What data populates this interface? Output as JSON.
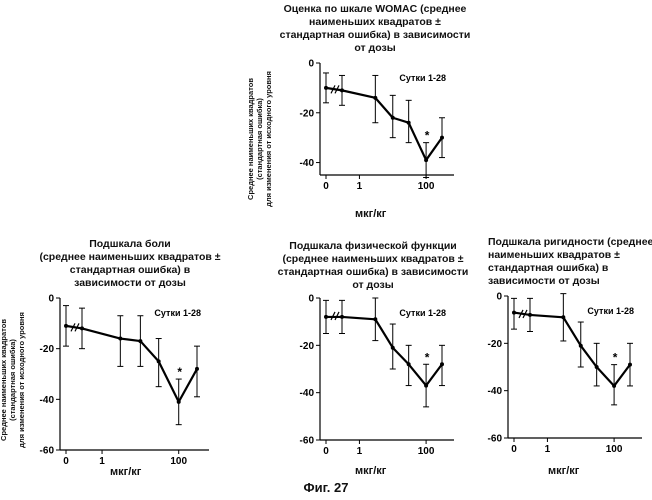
{
  "figure_label": "Фиг. 27",
  "chart_data": [
    {
      "type": "line",
      "title": "Оценка по шкале WOMAC (среднее\nнаименьших квадратов ±\nстандартная ошибка) в зависимости\nот дозы",
      "ylabel": "Среднее наименьших квадратов\n(стандартная ошибка)\nдля изменения от исходного уровня",
      "xlabel": "мкг/кг",
      "annotation": "Сутки 1-28",
      "x_scale": "log with 0 at break",
      "xticks": [
        "0",
        "1",
        "100"
      ],
      "yticks": [
        0,
        -20,
        -40
      ],
      "ylim": [
        -45,
        0
      ],
      "x": [
        0,
        0.3,
        3,
        10,
        30,
        100,
        300
      ],
      "values": [
        -10,
        -11,
        -14,
        -22,
        -24,
        -39,
        -30
      ],
      "err_upper": [
        -4,
        -5,
        -5,
        -13,
        -15,
        -32,
        -22
      ],
      "err_lower": [
        -16,
        -17,
        -24,
        -30,
        -32,
        -46,
        -38
      ],
      "significant": [
        false,
        false,
        false,
        false,
        false,
        true,
        false
      ],
      "significance_mark": "*"
    },
    {
      "type": "line",
      "title": "Подшкала боли\n(среднее наименьших квадратов ±\nстандартная ошибка) в\nзависимости  от дозы",
      "ylabel": "Среднее наименьших квадратов\n(стандартная ошибка)\nдля изменения от исходного уровня",
      "xlabel": "мкг/кг",
      "annotation": "Сутки 1-28",
      "x_scale": "log with 0 at break",
      "xticks": [
        "0",
        "1",
        "100"
      ],
      "yticks": [
        0,
        -20,
        -40,
        -60
      ],
      "ylim": [
        -60,
        0
      ],
      "x": [
        0,
        0.3,
        3,
        10,
        30,
        100,
        300
      ],
      "values": [
        -11,
        -12,
        -16,
        -17,
        -25,
        -41,
        -28
      ],
      "err_upper": [
        -3,
        -4,
        -7,
        -7,
        -16,
        -32,
        -19
      ],
      "err_lower": [
        -19,
        -20,
        -27,
        -27,
        -35,
        -50,
        -39
      ],
      "significant": [
        false,
        false,
        false,
        false,
        false,
        true,
        false
      ],
      "significance_mark": "*"
    },
    {
      "type": "line",
      "title": "Подшкала физической функции\n(среднее наименьших квадратов ±\nстандартная ошибка) в зависимости\nот дозы",
      "ylabel": "",
      "xlabel": "мкг/кг",
      "annotation": "Сутки 1-28",
      "x_scale": "log with 0 at break",
      "xticks": [
        "0",
        "1",
        "100"
      ],
      "yticks": [
        0,
        -20,
        -40,
        -60
      ],
      "ylim": [
        -60,
        0
      ],
      "x": [
        0,
        0.3,
        3,
        10,
        30,
        100,
        300
      ],
      "values": [
        -8,
        -8,
        -9,
        -21,
        -28,
        -37,
        -28
      ],
      "err_upper": [
        -1,
        -1,
        0,
        -11,
        -20,
        -28,
        -20
      ],
      "err_lower": [
        -15,
        -15,
        -18,
        -30,
        -37,
        -46,
        -37
      ],
      "significant": [
        false,
        false,
        false,
        false,
        false,
        true,
        false
      ],
      "significance_mark": "*"
    },
    {
      "type": "line",
      "title": "Подшкала ригидности (среднее\nнаименьших квадратов ±\nстандартная ошибка) в\nзависимости  от дозы",
      "ylabel": "",
      "xlabel": "мкг/кг",
      "annotation": "Сутки 1-28",
      "x_scale": "log with 0 at break",
      "xticks": [
        "0",
        "1",
        "100"
      ],
      "yticks": [
        0,
        -20,
        -40,
        -60
      ],
      "ylim": [
        -60,
        0
      ],
      "x": [
        0,
        0.3,
        3,
        10,
        30,
        100,
        300
      ],
      "values": [
        -7,
        -8,
        -9,
        -21,
        -30,
        -38,
        -29
      ],
      "err_upper": [
        -1,
        -1,
        1,
        -11,
        -20,
        -29,
        -20
      ],
      "err_lower": [
        -14,
        -15,
        -19,
        -30,
        -38,
        -46,
        -38
      ],
      "significant": [
        false,
        false,
        false,
        false,
        false,
        true,
        false
      ],
      "significance_mark": "*"
    }
  ]
}
